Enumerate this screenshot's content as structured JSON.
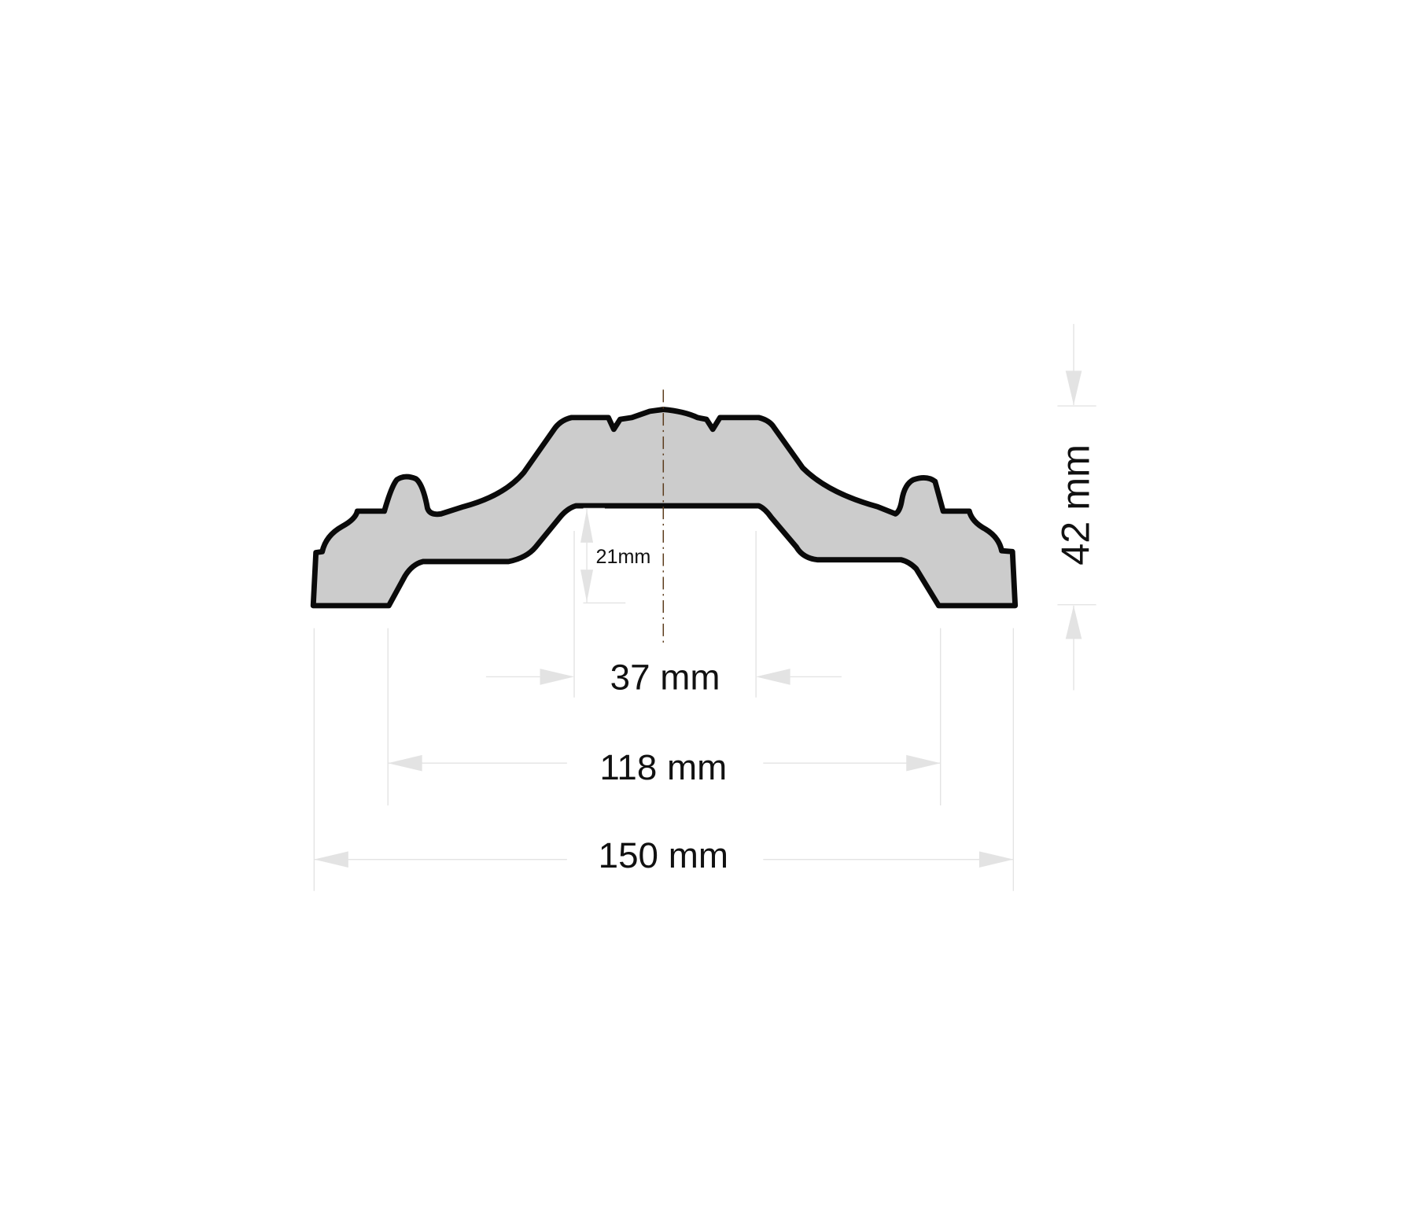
{
  "drawing": {
    "profile_fill": "#cccccc",
    "profile_stroke": "#0a0a0a",
    "centerline_color": "#5a3a1a",
    "dimension_color": "#e3e3e3",
    "dimensions": {
      "height": "42 mm",
      "inner_top": "37 mm",
      "base_inner": "118 mm",
      "overall_width": "150 mm",
      "inner_height": "21mm"
    }
  }
}
